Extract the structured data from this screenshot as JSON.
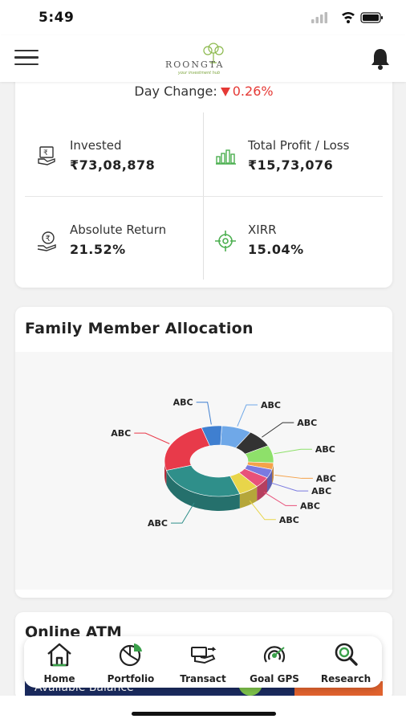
{
  "status_bar": {
    "time": "5:49"
  },
  "header": {
    "logo_brand": "ROONGTA",
    "logo_tagline": "your investment hub"
  },
  "summary": {
    "day_change_label": "Day Change:",
    "day_change_value": "0.26%",
    "metrics": [
      {
        "label": "Invested",
        "value": "₹73,08,878",
        "icon": "money-hand-icon"
      },
      {
        "label": "Total Profit / Loss",
        "value": "₹15,73,076",
        "icon": "bar-growth-icon"
      },
      {
        "label": "Absolute Return",
        "value": "21.52%",
        "icon": "rupee-hand-icon"
      },
      {
        "label": "XIRR",
        "value": "15.04%",
        "icon": "target-icon"
      }
    ]
  },
  "family_allocation": {
    "title": "Family Member Allocation",
    "chart_data": {
      "type": "pie",
      "categories": [
        "ABC",
        "ABC",
        "ABC",
        "ABC",
        "ABC",
        "ABC",
        "ABC",
        "ABC",
        "ABC",
        "ABC"
      ],
      "values": [
        9,
        8,
        8,
        3,
        4,
        5,
        6,
        27,
        24,
        6
      ],
      "colors": [
        "#6fa8e8",
        "#333333",
        "#8ee06a",
        "#f5a24a",
        "#7a7ae0",
        "#e8517a",
        "#e8d54a",
        "#2f8f8a",
        "#e83a4a",
        "#3f7fd0"
      ],
      "donut": true
    }
  },
  "online_atm": {
    "title": "Online ATM",
    "available_balance_label": "Available Balance"
  },
  "tabs": [
    {
      "label": "Home",
      "icon": "home-icon"
    },
    {
      "label": "Portfolio",
      "icon": "pie-chart-icon"
    },
    {
      "label": "Transact",
      "icon": "transact-hand-icon"
    },
    {
      "label": "Goal GPS",
      "icon": "goal-gps-icon"
    },
    {
      "label": "Research",
      "icon": "research-magnifier-icon"
    }
  ]
}
